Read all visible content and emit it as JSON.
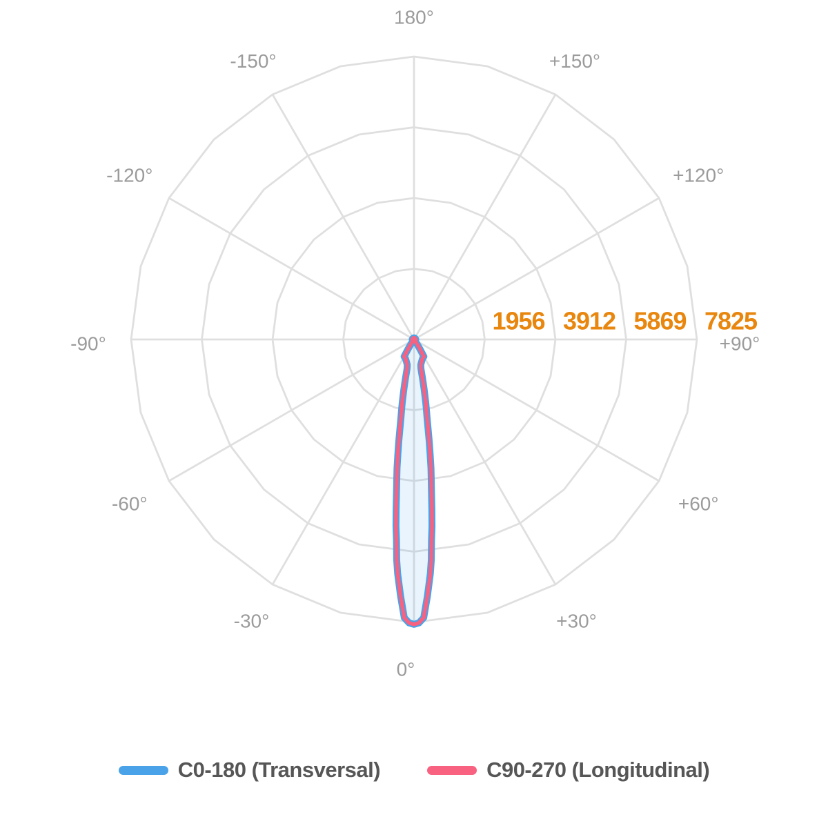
{
  "chart_data": {
    "type": "line",
    "subtype": "polar-photometric-intensity-distribution",
    "units": "cd",
    "grid": {
      "ring_values": [
        1956,
        3912,
        5869,
        7825
      ],
      "ring_max": 7825,
      "ring_polygon_step_deg": 15,
      "spoke_step_deg": 30
    },
    "angle_ticks": [
      {
        "angle": 180,
        "label": "180°"
      },
      {
        "angle": -150,
        "label": "-150°"
      },
      {
        "angle": 150,
        "label": "+150°"
      },
      {
        "angle": -120,
        "label": "-120°"
      },
      {
        "angle": 120,
        "label": "+120°"
      },
      {
        "angle": -90,
        "label": "-90°"
      },
      {
        "angle": 90,
        "label": "+90°"
      },
      {
        "angle": -60,
        "label": "-60°"
      },
      {
        "angle": 60,
        "label": "+60°"
      },
      {
        "angle": -30,
        "label": "-30°"
      },
      {
        "angle": 30,
        "label": "+30°"
      },
      {
        "angle": 0,
        "label": "0°"
      }
    ],
    "series": [
      {
        "name": "C0-180 (Transversal)",
        "color": "#4AA2E8",
        "stroke_width": 10
      },
      {
        "name": "C90-270 (Longitudinal)",
        "color": "#F8617F",
        "stroke_width": 5.5
      }
    ],
    "symmetric_about_nadir": true,
    "samples_deg_cd": [
      [
        0,
        7880
      ],
      [
        1,
        7840
      ],
      [
        2,
        7700
      ],
      [
        3,
        7100
      ],
      [
        4,
        6490
      ],
      [
        4.5,
        6110
      ],
      [
        5,
        5570
      ],
      [
        5.5,
        5190
      ],
      [
        6,
        4730
      ],
      [
        6.5,
        4290
      ],
      [
        7,
        3910
      ],
      [
        7.5,
        3590
      ],
      [
        8,
        3210
      ],
      [
        8.5,
        2860
      ],
      [
        9,
        2480
      ],
      [
        9.5,
        2190
      ],
      [
        10,
        1980
      ],
      [
        10.5,
        1790
      ],
      [
        11,
        1580
      ],
      [
        11.5,
        1410
      ],
      [
        12,
        1220
      ],
      [
        12.5,
        1070
      ],
      [
        13,
        920
      ],
      [
        13.5,
        820
      ],
      [
        15,
        725
      ],
      [
        20,
        630
      ],
      [
        25,
        570
      ],
      [
        30,
        545
      ],
      [
        32,
        305
      ],
      [
        34,
        155
      ],
      [
        36,
        85
      ],
      [
        40,
        55
      ],
      [
        60,
        50
      ],
      [
        90,
        50
      ],
      [
        120,
        45
      ],
      [
        150,
        45
      ],
      [
        180,
        45
      ]
    ]
  },
  "legend": {
    "items": [
      {
        "label": "C0-180 (Transversal)",
        "color": "#4AA2E8"
      },
      {
        "label": "C90-270 (Longitudinal)",
        "color": "#F8617F"
      }
    ]
  },
  "colors": {
    "background": "#FFFFFF",
    "grid": "#DFDFDF",
    "angle_label": "#9B9B9B",
    "radial_label": "#E8860D",
    "beam_fill": "#4AA2E8"
  }
}
